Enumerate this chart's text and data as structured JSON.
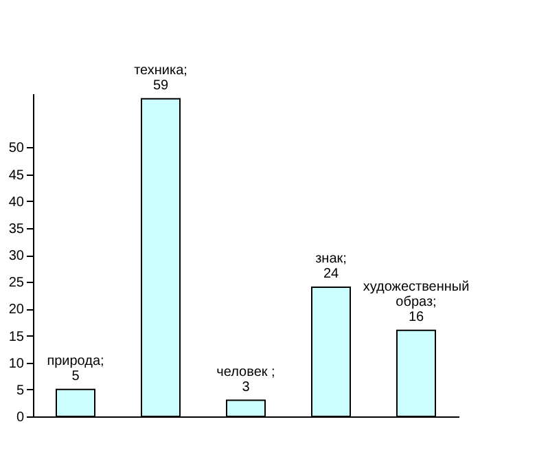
{
  "chart_data": {
    "type": "bar",
    "categories": [
      null,
      null,
      null,
      null,
      null
    ],
    "values": [
      5,
      59,
      3,
      24,
      16
    ],
    "value_labels": [
      "природа; 5",
      "техника; 59",
      "человек ; 3",
      "знак; 24",
      "художественный образ; 16"
    ],
    "color": "#ccffff",
    "ylim": [
      0,
      60
    ],
    "yticks": [
      0,
      5,
      10,
      15,
      20,
      25,
      30,
      35,
      40,
      45,
      50
    ],
    "grid": false,
    "tick_labels": "y"
  }
}
